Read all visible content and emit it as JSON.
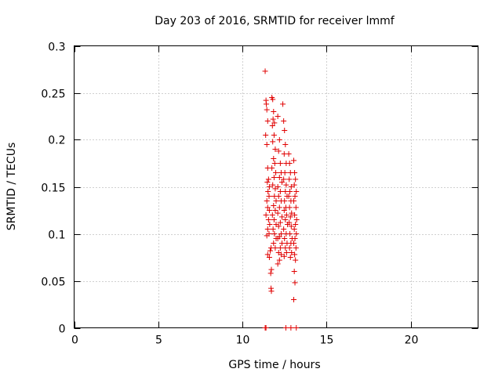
{
  "chart_data": {
    "type": "scatter",
    "title": "Day 203 of 2016, SRMTID for receiver lmmf",
    "xlabel": "GPS time / hours",
    "ylabel": "SRMTID / TECUs",
    "xlim": [
      0,
      24
    ],
    "ylim": [
      0,
      0.3
    ],
    "xticks": [
      0,
      5,
      10,
      15,
      20
    ],
    "xtick_labels": [
      "0",
      "5",
      "10",
      "15",
      "20"
    ],
    "yticks": [
      0,
      0.05,
      0.1,
      0.15,
      0.2,
      0.25,
      0.3
    ],
    "ytick_labels": [
      "0",
      "0.05",
      "0.1",
      "0.15",
      "0.2",
      "0.25",
      "0.3"
    ],
    "grid": true,
    "marker": "+",
    "color": "#e00000",
    "series": [
      {
        "name": "SRMTID",
        "points": [
          [
            11.35,
            0.273
          ],
          [
            11.4,
            0.242
          ],
          [
            11.42,
            0.238
          ],
          [
            11.45,
            0.232
          ],
          [
            11.5,
            0.22
          ],
          [
            11.38,
            0.205
          ],
          [
            11.45,
            0.195
          ],
          [
            11.5,
            0.17
          ],
          [
            11.55,
            0.158
          ],
          [
            11.48,
            0.155
          ],
          [
            11.6,
            0.15
          ],
          [
            11.52,
            0.145
          ],
          [
            11.58,
            0.14
          ],
          [
            11.45,
            0.135
          ],
          [
            11.5,
            0.128
          ],
          [
            11.6,
            0.125
          ],
          [
            11.4,
            0.12
          ],
          [
            11.55,
            0.115
          ],
          [
            11.62,
            0.11
          ],
          [
            11.5,
            0.105
          ],
          [
            11.58,
            0.1
          ],
          [
            11.45,
            0.098
          ],
          [
            11.7,
            0.085
          ],
          [
            11.65,
            0.082
          ],
          [
            11.5,
            0.078
          ],
          [
            11.6,
            0.075
          ],
          [
            11.72,
            0.062
          ],
          [
            11.68,
            0.058
          ],
          [
            11.7,
            0.042
          ],
          [
            11.72,
            0.039
          ],
          [
            11.35,
            0.0
          ],
          [
            11.4,
            0.0
          ],
          [
            11.75,
            0.245
          ],
          [
            11.8,
            0.243
          ],
          [
            11.85,
            0.23
          ],
          [
            11.82,
            0.222
          ],
          [
            11.9,
            0.218
          ],
          [
            11.78,
            0.215
          ],
          [
            11.88,
            0.205
          ],
          [
            11.8,
            0.198
          ],
          [
            11.95,
            0.19
          ],
          [
            11.85,
            0.18
          ],
          [
            11.92,
            0.175
          ],
          [
            11.75,
            0.17
          ],
          [
            11.98,
            0.165
          ],
          [
            11.88,
            0.16
          ],
          [
            11.8,
            0.152
          ],
          [
            11.95,
            0.148
          ],
          [
            11.9,
            0.14
          ],
          [
            12.0,
            0.135
          ],
          [
            11.85,
            0.13
          ],
          [
            11.95,
            0.125
          ],
          [
            11.78,
            0.12
          ],
          [
            11.88,
            0.115
          ],
          [
            12.0,
            0.11
          ],
          [
            11.82,
            0.105
          ],
          [
            11.9,
            0.1
          ],
          [
            12.0,
            0.095
          ],
          [
            11.85,
            0.09
          ],
          [
            11.95,
            0.085
          ],
          [
            12.1,
            0.225
          ],
          [
            12.2,
            0.2
          ],
          [
            12.15,
            0.188
          ],
          [
            12.25,
            0.175
          ],
          [
            12.3,
            0.165
          ],
          [
            12.2,
            0.16
          ],
          [
            12.35,
            0.155
          ],
          [
            12.1,
            0.15
          ],
          [
            12.25,
            0.145
          ],
          [
            12.15,
            0.14
          ],
          [
            12.3,
            0.135
          ],
          [
            12.2,
            0.128
          ],
          [
            12.1,
            0.122
          ],
          [
            12.35,
            0.118
          ],
          [
            12.25,
            0.112
          ],
          [
            12.15,
            0.108
          ],
          [
            12.3,
            0.1
          ],
          [
            12.2,
            0.097
          ],
          [
            12.1,
            0.095
          ],
          [
            12.35,
            0.09
          ],
          [
            12.25,
            0.085
          ],
          [
            12.15,
            0.08
          ],
          [
            12.3,
            0.078
          ],
          [
            12.2,
            0.072
          ],
          [
            12.1,
            0.068
          ],
          [
            12.4,
            0.238
          ],
          [
            12.45,
            0.22
          ],
          [
            12.5,
            0.21
          ],
          [
            12.55,
            0.195
          ],
          [
            12.48,
            0.185
          ],
          [
            12.6,
            0.175
          ],
          [
            12.52,
            0.165
          ],
          [
            12.45,
            0.158
          ],
          [
            12.6,
            0.152
          ],
          [
            12.55,
            0.145
          ],
          [
            12.65,
            0.14
          ],
          [
            12.5,
            0.135
          ],
          [
            12.58,
            0.128
          ],
          [
            12.48,
            0.125
          ],
          [
            12.62,
            0.12
          ],
          [
            12.55,
            0.115
          ],
          [
            12.68,
            0.11
          ],
          [
            12.45,
            0.105
          ],
          [
            12.6,
            0.1
          ],
          [
            12.5,
            0.095
          ],
          [
            12.65,
            0.09
          ],
          [
            12.55,
            0.085
          ],
          [
            12.62,
            0.08
          ],
          [
            12.48,
            0.076
          ],
          [
            12.58,
            0.0
          ],
          [
            12.75,
            0.185
          ],
          [
            12.8,
            0.175
          ],
          [
            12.85,
            0.165
          ],
          [
            12.78,
            0.158
          ],
          [
            12.9,
            0.15
          ],
          [
            12.82,
            0.145
          ],
          [
            12.75,
            0.14
          ],
          [
            12.88,
            0.135
          ],
          [
            12.8,
            0.128
          ],
          [
            12.92,
            0.122
          ],
          [
            12.85,
            0.118
          ],
          [
            12.78,
            0.112
          ],
          [
            12.9,
            0.108
          ],
          [
            12.82,
            0.1
          ],
          [
            12.95,
            0.095
          ],
          [
            12.88,
            0.09
          ],
          [
            12.8,
            0.085
          ],
          [
            12.92,
            0.08
          ],
          [
            12.85,
            0.075
          ],
          [
            12.88,
            0.0
          ],
          [
            13.05,
            0.178
          ],
          [
            13.1,
            0.165
          ],
          [
            13.15,
            0.158
          ],
          [
            13.08,
            0.152
          ],
          [
            13.2,
            0.145
          ],
          [
            13.12,
            0.14
          ],
          [
            13.05,
            0.135
          ],
          [
            13.18,
            0.128
          ],
          [
            13.1,
            0.12
          ],
          [
            13.22,
            0.115
          ],
          [
            13.15,
            0.11
          ],
          [
            13.08,
            0.105
          ],
          [
            13.2,
            0.1
          ],
          [
            13.12,
            0.095
          ],
          [
            13.05,
            0.09
          ],
          [
            13.18,
            0.085
          ],
          [
            13.1,
            0.078
          ],
          [
            13.15,
            0.072
          ],
          [
            13.08,
            0.06
          ],
          [
            13.12,
            0.048
          ],
          [
            13.05,
            0.03
          ],
          [
            13.2,
            0.0
          ]
        ]
      }
    ]
  }
}
